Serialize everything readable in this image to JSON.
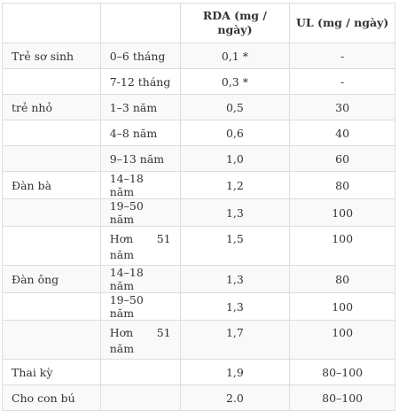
{
  "table": {
    "headers": [
      "",
      "",
      "RDA (mg / ngày)",
      "UL (mg / ngày)"
    ],
    "rows": [
      {
        "group": "Trẻ sơ sinh",
        "age": "0–6 tháng",
        "rda": "0,1 *",
        "ul": "-"
      },
      {
        "group": "",
        "age": "7-12 tháng",
        "rda": "0,3 *",
        "ul": "-"
      },
      {
        "group": "trẻ nhỏ",
        "age": "1–3 năm",
        "rda": "0,5",
        "ul": "30"
      },
      {
        "group": "",
        "age": "4–8 năm",
        "rda": "0,6",
        "ul": "40"
      },
      {
        "group": "",
        "age": "9–13 năm",
        "rda": "1,0",
        "ul": "60"
      },
      {
        "group": "Đàn bà",
        "age": "14–18 năm",
        "rda": "1,2",
        "ul": "80"
      },
      {
        "group": "",
        "age": "19–50 năm",
        "rda": "1,3",
        "ul": "100"
      },
      {
        "group": "",
        "age": "Hơn 51 năm",
        "age_a": "Hơn",
        "age_b": "51",
        "age_c": "năm",
        "rda": "1,5",
        "ul": "100"
      },
      {
        "group": "Đàn ông",
        "age": "14–18 năm",
        "rda": "1,3",
        "ul": "80"
      },
      {
        "group": "",
        "age": "19–50 năm",
        "rda": "1,3",
        "ul": "100"
      },
      {
        "group": "",
        "age": "Hơn 51 năm",
        "age_a": "Hơn",
        "age_b": "51",
        "age_c": "năm",
        "rda": "1,7",
        "ul": "100"
      },
      {
        "group": "Thai kỳ",
        "age": "",
        "rda": "1,9",
        "ul": "80–100"
      },
      {
        "group": "Cho con bú",
        "age": "",
        "rda": "2.0",
        "ul": "80–100"
      }
    ]
  }
}
